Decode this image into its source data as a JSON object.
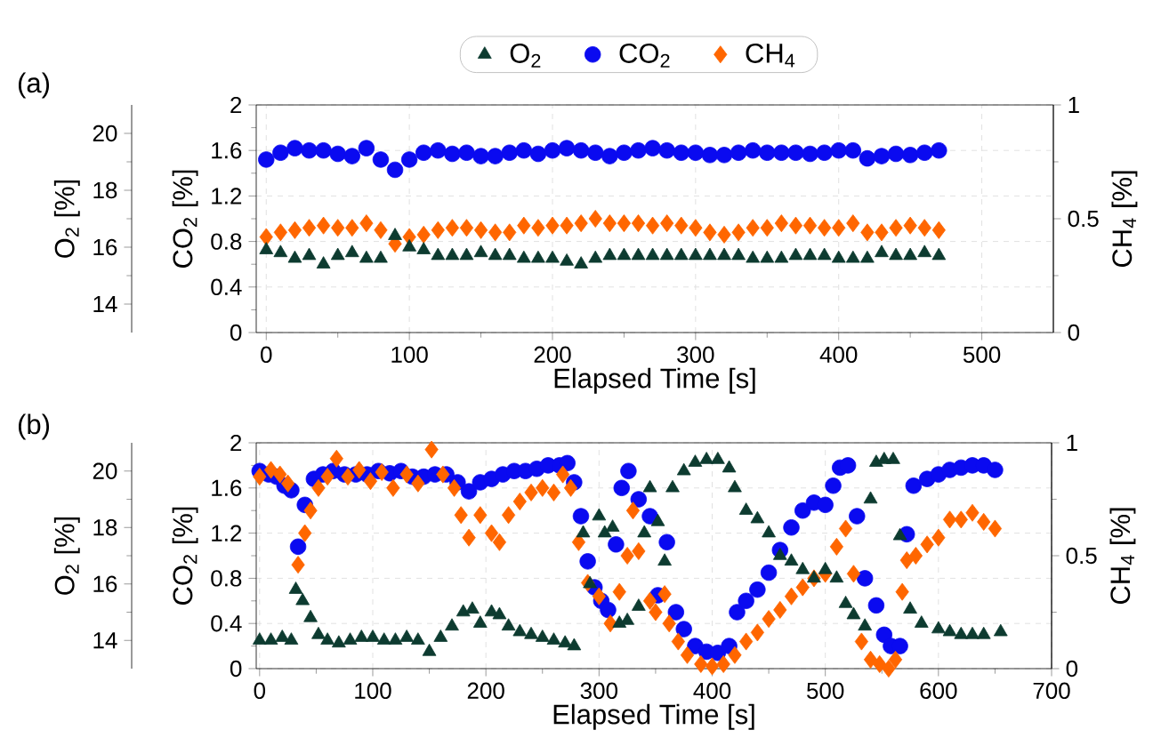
{
  "chart_data": [
    {
      "type": "scatter",
      "xlabel": "Elapsed Time [s]",
      "ylabel": "CO$_{2}$ [%]",
      "y2label": "CH$_{4}$ [%]",
      "y3label": "O$_{2}$ [%]",
      "annotations": [
        "(a)"
      ],
      "xlim": [
        -7,
        550
      ],
      "xticks": [
        0,
        100,
        200,
        300,
        400,
        500
      ],
      "ylim": [
        0,
        2
      ],
      "yticks": [
        0,
        0.4,
        0.8,
        1.2,
        1.6,
        2
      ],
      "y2lim": [
        0,
        1
      ],
      "y2ticks": [
        0,
        0.5,
        1
      ],
      "y3lim": [
        13,
        21
      ],
      "y3ticks": [
        14,
        16,
        18,
        20
      ],
      "grid": true,
      "legend": "top",
      "series": [
        {
          "name": "O$_{2}$",
          "color": "#0d3b30",
          "marker": "triangle",
          "axis": "y3",
          "x": [
            0,
            10,
            20,
            30,
            40,
            50,
            60,
            70,
            80,
            90,
            100,
            110,
            120,
            130,
            140,
            150,
            160,
            170,
            180,
            190,
            200,
            210,
            220,
            230,
            240,
            250,
            260,
            270,
            280,
            290,
            300,
            310,
            320,
            330,
            340,
            350,
            360,
            370,
            380,
            390,
            400,
            410,
            420,
            430,
            440,
            450,
            460,
            470
          ],
          "values": [
            15.9,
            15.8,
            15.6,
            15.7,
            15.4,
            15.7,
            15.8,
            15.6,
            15.6,
            16.4,
            16.0,
            15.9,
            15.7,
            15.7,
            15.7,
            15.8,
            15.7,
            15.7,
            15.6,
            15.6,
            15.6,
            15.5,
            15.4,
            15.6,
            15.7,
            15.7,
            15.7,
            15.7,
            15.7,
            15.7,
            15.7,
            15.7,
            15.7,
            15.7,
            15.6,
            15.6,
            15.6,
            15.7,
            15.7,
            15.7,
            15.6,
            15.6,
            15.6,
            15.8,
            15.7,
            15.7,
            15.8,
            15.7
          ]
        },
        {
          "name": "CO$_{2}$",
          "color": "#0a0af0",
          "marker": "circle",
          "x": [
            0,
            10,
            20,
            30,
            40,
            50,
            60,
            70,
            80,
            90,
            100,
            110,
            120,
            130,
            140,
            150,
            160,
            170,
            180,
            190,
            200,
            210,
            220,
            230,
            240,
            250,
            260,
            270,
            280,
            290,
            300,
            310,
            320,
            330,
            340,
            350,
            360,
            370,
            380,
            390,
            400,
            410,
            420,
            430,
            440,
            450,
            460,
            470
          ],
          "values": [
            1.52,
            1.58,
            1.62,
            1.6,
            1.6,
            1.57,
            1.55,
            1.62,
            1.52,
            1.43,
            1.52,
            1.58,
            1.6,
            1.57,
            1.58,
            1.55,
            1.55,
            1.58,
            1.6,
            1.57,
            1.6,
            1.62,
            1.6,
            1.58,
            1.55,
            1.58,
            1.6,
            1.62,
            1.6,
            1.58,
            1.58,
            1.56,
            1.56,
            1.58,
            1.6,
            1.58,
            1.58,
            1.58,
            1.57,
            1.58,
            1.6,
            1.6,
            1.53,
            1.55,
            1.57,
            1.56,
            1.58,
            1.6
          ]
        },
        {
          "name": "CH$_{4}$",
          "color": "#ff6600",
          "marker": "diamond",
          "axis": "y2",
          "x": [
            0,
            10,
            20,
            30,
            40,
            50,
            60,
            70,
            80,
            90,
            100,
            110,
            120,
            130,
            140,
            150,
            160,
            170,
            180,
            190,
            200,
            210,
            220,
            230,
            240,
            250,
            260,
            270,
            280,
            290,
            300,
            310,
            320,
            330,
            340,
            350,
            360,
            370,
            380,
            390,
            400,
            410,
            420,
            430,
            440,
            450,
            460,
            470
          ],
          "values": [
            0.42,
            0.44,
            0.45,
            0.46,
            0.47,
            0.46,
            0.46,
            0.48,
            0.45,
            0.39,
            0.42,
            0.43,
            0.45,
            0.46,
            0.46,
            0.45,
            0.44,
            0.44,
            0.47,
            0.46,
            0.47,
            0.47,
            0.48,
            0.5,
            0.48,
            0.48,
            0.48,
            0.47,
            0.48,
            0.47,
            0.46,
            0.44,
            0.43,
            0.44,
            0.46,
            0.46,
            0.48,
            0.47,
            0.47,
            0.46,
            0.46,
            0.48,
            0.44,
            0.44,
            0.46,
            0.47,
            0.46,
            0.45
          ]
        }
      ]
    },
    {
      "type": "scatter",
      "xlabel": "Elapsed Time [s]",
      "ylabel": "CO$_{2}$ [%]",
      "y2label": "CH$_{4}$ [%]",
      "y3label": "O$_{2}$ [%]",
      "annotations": [
        "(b)"
      ],
      "xlim": [
        -3,
        700
      ],
      "xticks": [
        0,
        100,
        200,
        300,
        400,
        500,
        600,
        700
      ],
      "ylim": [
        0,
        2
      ],
      "yticks": [
        0,
        0.4,
        0.8,
        1.2,
        1.6,
        2
      ],
      "y2lim": [
        0,
        1
      ],
      "y2ticks": [
        0,
        0.5,
        1
      ],
      "y3lim": [
        13,
        21
      ],
      "y3ticks": [
        14,
        16,
        18,
        20
      ],
      "grid": true,
      "series": [
        {
          "color": "#0d3b30",
          "marker": "triangle",
          "axis": "y3",
          "x": [
            0,
            10,
            20,
            28,
            32,
            38,
            45,
            52,
            60,
            70,
            80,
            90,
            100,
            110,
            120,
            130,
            140,
            150,
            160,
            170,
            180,
            188,
            195,
            205,
            212,
            220,
            230,
            240,
            250,
            260,
            270,
            278,
            286,
            292,
            300,
            305,
            312,
            318,
            325,
            335,
            340,
            345,
            352,
            358,
            365,
            375,
            385,
            395,
            405,
            415,
            420,
            430,
            440,
            450,
            460,
            470,
            480,
            490,
            500,
            510,
            518,
            525,
            535,
            540,
            545,
            552,
            560,
            566,
            575,
            585,
            600,
            610,
            620,
            630,
            640,
            655
          ],
          "values": [
            14.0,
            14.0,
            14.1,
            14.0,
            15.8,
            15.4,
            14.8,
            14.2,
            14.0,
            13.9,
            14.0,
            14.1,
            14.1,
            14.0,
            14.0,
            14.1,
            14.0,
            13.6,
            14.1,
            14.5,
            15.0,
            15.1,
            14.6,
            15.0,
            14.9,
            14.5,
            14.3,
            14.2,
            14.1,
            14.0,
            13.9,
            13.8,
            17.8,
            16.0,
            18.4,
            17.8,
            18.0,
            14.6,
            14.7,
            15.2,
            17.8,
            19.4,
            18.2,
            16.8,
            19.4,
            20.0,
            20.3,
            20.4,
            20.4,
            20.1,
            19.4,
            18.6,
            18.3,
            17.8,
            17.0,
            16.8,
            16.5,
            16.2,
            16.5,
            16.2,
            15.3,
            14.9,
            14.5,
            19.0,
            20.3,
            20.4,
            20.4,
            17.7,
            15.1,
            14.6,
            14.4,
            14.3,
            14.2,
            14.2,
            14.2,
            14.3
          ]
        },
        {
          "color": "#0a0af0",
          "marker": "circle",
          "x": [
            0,
            8,
            15,
            22,
            28,
            34,
            40,
            48,
            56,
            65,
            75,
            85,
            95,
            105,
            115,
            125,
            135,
            145,
            155,
            165,
            175,
            185,
            195,
            205,
            215,
            225,
            235,
            245,
            255,
            265,
            272,
            278,
            284,
            290,
            296,
            302,
            308,
            315,
            320,
            326,
            335,
            345,
            352,
            360,
            368,
            375,
            385,
            395,
            405,
            415,
            422,
            430,
            440,
            450,
            460,
            470,
            480,
            490,
            500,
            507,
            513,
            520,
            528,
            535,
            545,
            552,
            558,
            566,
            572,
            578,
            590,
            600,
            610,
            620,
            630,
            640,
            650
          ],
          "values": [
            1.75,
            1.72,
            1.7,
            1.62,
            1.58,
            1.08,
            1.45,
            1.68,
            1.72,
            1.75,
            1.72,
            1.72,
            1.72,
            1.75,
            1.73,
            1.75,
            1.7,
            1.7,
            1.72,
            1.72,
            1.65,
            1.57,
            1.65,
            1.68,
            1.72,
            1.75,
            1.75,
            1.77,
            1.8,
            1.8,
            1.82,
            1.65,
            1.35,
            0.95,
            0.72,
            0.6,
            0.52,
            1.1,
            1.6,
            1.75,
            1.5,
            1.35,
            0.65,
            1.12,
            0.5,
            0.35,
            0.2,
            0.15,
            0.14,
            0.2,
            0.5,
            0.6,
            0.7,
            0.85,
            1.05,
            1.25,
            1.4,
            1.47,
            1.45,
            1.62,
            1.78,
            1.8,
            1.35,
            0.8,
            0.56,
            0.3,
            0.2,
            0.2,
            1.19,
            1.62,
            1.68,
            1.72,
            1.76,
            1.78,
            1.8,
            1.8,
            1.76
          ]
        },
        {
          "color": "#ff6600",
          "marker": "diamond",
          "axis": "y2",
          "x": [
            0,
            10,
            18,
            25,
            34,
            40,
            45,
            52,
            60,
            68,
            78,
            88,
            98,
            108,
            118,
            130,
            140,
            152,
            162,
            172,
            178,
            185,
            195,
            205,
            212,
            220,
            230,
            240,
            250,
            260,
            268,
            275,
            282,
            290,
            300,
            310,
            318,
            325,
            330,
            335,
            345,
            350,
            358,
            362,
            370,
            378,
            390,
            400,
            410,
            420,
            430,
            440,
            450,
            460,
            470,
            480,
            490,
            500,
            510,
            518,
            525,
            532,
            540,
            548,
            556,
            562,
            568,
            572,
            580,
            590,
            600,
            610,
            620,
            630,
            640,
            650
          ],
          "values": [
            0.85,
            0.88,
            0.86,
            0.82,
            0.46,
            0.6,
            0.7,
            0.8,
            0.85,
            0.93,
            0.85,
            0.88,
            0.83,
            0.87,
            0.8,
            0.86,
            0.82,
            0.97,
            0.86,
            0.8,
            0.68,
            0.58,
            0.68,
            0.6,
            0.56,
            0.68,
            0.74,
            0.78,
            0.8,
            0.78,
            0.86,
            0.8,
            0.56,
            0.38,
            0.32,
            0.2,
            0.34,
            0.5,
            0.7,
            0.52,
            0.3,
            0.25,
            0.33,
            0.2,
            0.12,
            0.06,
            0.02,
            0.01,
            0.02,
            0.06,
            0.12,
            0.16,
            0.22,
            0.26,
            0.32,
            0.36,
            0.4,
            0.42,
            0.54,
            0.62,
            0.42,
            0.12,
            0.04,
            0.02,
            0.0,
            0.04,
            0.34,
            0.48,
            0.5,
            0.55,
            0.58,
            0.66,
            0.66,
            0.69,
            0.65,
            0.62
          ]
        }
      ]
    }
  ]
}
